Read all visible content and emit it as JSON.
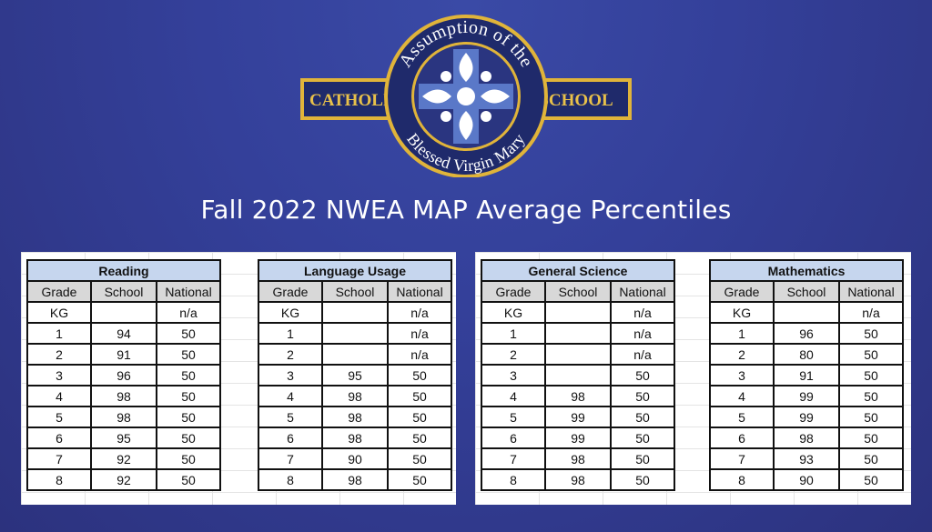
{
  "logo": {
    "ring_text_top": "Assumption of the",
    "ring_text_bottom": "Blessed Virgin Mary",
    "left_banner": "CATHOLIC",
    "right_banner": "SCHOOL",
    "colors": {
      "navy": "#1f2a6b",
      "gold": "#e0b43a",
      "blue": "#5a78c8"
    },
    "icon": "fleur-de-lis-cross"
  },
  "title": "Fall 2022 NWEA MAP Average Percentiles",
  "columns": [
    "Grade",
    "School",
    "National"
  ],
  "tables": [
    {
      "subject": "Reading",
      "rows": [
        [
          "KG",
          "",
          "n/a"
        ],
        [
          "1",
          "94",
          "50"
        ],
        [
          "2",
          "91",
          "50"
        ],
        [
          "3",
          "96",
          "50"
        ],
        [
          "4",
          "98",
          "50"
        ],
        [
          "5",
          "98",
          "50"
        ],
        [
          "6",
          "95",
          "50"
        ],
        [
          "7",
          "92",
          "50"
        ],
        [
          "8",
          "92",
          "50"
        ]
      ]
    },
    {
      "subject": "Language Usage",
      "rows": [
        [
          "KG",
          "",
          "n/a"
        ],
        [
          "1",
          "",
          "n/a"
        ],
        [
          "2",
          "",
          "n/a"
        ],
        [
          "3",
          "95",
          "50"
        ],
        [
          "4",
          "98",
          "50"
        ],
        [
          "5",
          "98",
          "50"
        ],
        [
          "6",
          "98",
          "50"
        ],
        [
          "7",
          "90",
          "50"
        ],
        [
          "8",
          "98",
          "50"
        ]
      ]
    },
    {
      "subject": "General Science",
      "rows": [
        [
          "KG",
          "",
          "n/a"
        ],
        [
          "1",
          "",
          "n/a"
        ],
        [
          "2",
          "",
          "n/a"
        ],
        [
          "3",
          "",
          "50"
        ],
        [
          "4",
          "98",
          "50"
        ],
        [
          "5",
          "99",
          "50"
        ],
        [
          "6",
          "99",
          "50"
        ],
        [
          "7",
          "98",
          "50"
        ],
        [
          "8",
          "98",
          "50"
        ]
      ]
    },
    {
      "subject": "Mathematics",
      "rows": [
        [
          "KG",
          "",
          "n/a"
        ],
        [
          "1",
          "96",
          "50"
        ],
        [
          "2",
          "80",
          "50"
        ],
        [
          "3",
          "91",
          "50"
        ],
        [
          "4",
          "99",
          "50"
        ],
        [
          "5",
          "99",
          "50"
        ],
        [
          "6",
          "98",
          "50"
        ],
        [
          "7",
          "93",
          "50"
        ],
        [
          "8",
          "90",
          "50"
        ]
      ]
    }
  ]
}
